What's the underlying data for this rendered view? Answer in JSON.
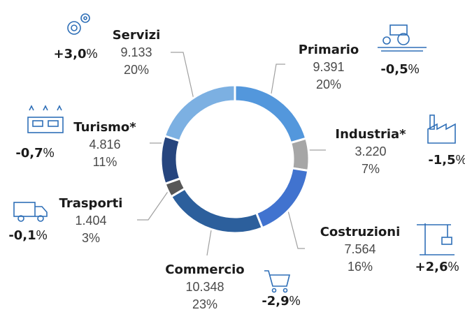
{
  "chart_data": {
    "type": "donut",
    "categories": [
      "Primario",
      "Industria*",
      "Costruzioni",
      "Commercio",
      "Trasporti",
      "Turismo*",
      "Servizi"
    ],
    "values": [
      9391,
      3220,
      7564,
      10348,
      1404,
      4816,
      9133
    ],
    "value_labels": [
      "9.391",
      "3.220",
      "7.564",
      "10.348",
      "1.404",
      "4.816",
      "9.133"
    ],
    "shares": [
      20,
      7,
      16,
      23,
      3,
      11,
      20
    ],
    "share_labels": [
      "20%",
      "7%",
      "16%",
      "23%",
      "3%",
      "11%",
      "20%"
    ],
    "changes": [
      -0.5,
      -1.5,
      2.6,
      -2.9,
      -0.1,
      -0.7,
      3.0
    ],
    "change_labels": [
      "-0,5",
      "-1,5",
      "+2,6",
      "-2,9",
      "-0,1",
      "-0,7",
      "+3,0"
    ],
    "change_unit": "%",
    "colors": [
      "#5397dc",
      "#a6a6a6",
      "#4173cf",
      "#2c5f9c",
      "#575757",
      "#26457e",
      "#7cb0e2"
    ]
  }
}
